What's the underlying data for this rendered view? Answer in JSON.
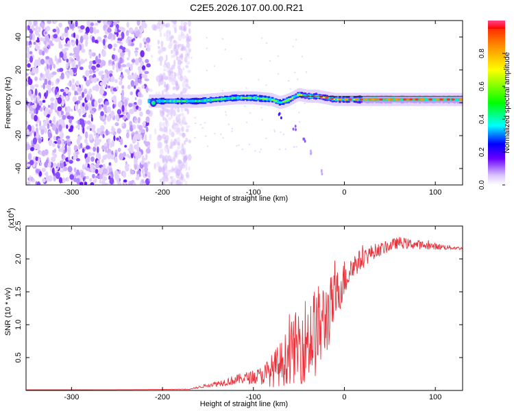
{
  "title": "C2E5.2026.107.00.00.R21",
  "chart_data": [
    {
      "type": "heatmap",
      "xlabel": "Height of straight line (km)",
      "ylabel": "Frequency (Hz)",
      "xlim": [
        -350,
        130
      ],
      "ylim": [
        -50,
        50
      ],
      "xticks": [
        -300,
        -200,
        -100,
        0,
        100
      ],
      "yticks": [
        -40,
        -20,
        0,
        20,
        40
      ],
      "colorbar": {
        "label": "Normalized spectral amplitude",
        "range": [
          0,
          1
        ],
        "ticks": [
          "0.0",
          "0.2",
          "0.4",
          "0.6",
          "0.8"
        ],
        "tick_values": [
          0,
          0.2,
          0.4,
          0.6,
          0.8
        ]
      },
      "features": {
        "noise_region_x": [
          -350,
          -170
        ],
        "ridge_points": [
          [
            -215,
            1
          ],
          [
            -200,
            1
          ],
          [
            -180,
            1
          ],
          [
            -160,
            1
          ],
          [
            -140,
            2
          ],
          [
            -120,
            3
          ],
          [
            -100,
            3
          ],
          [
            -80,
            2
          ],
          [
            -70,
            0
          ],
          [
            -60,
            2
          ],
          [
            -50,
            5
          ],
          [
            -40,
            4
          ],
          [
            -30,
            4
          ],
          [
            -20,
            3
          ],
          [
            -10,
            2
          ],
          [
            0,
            2
          ],
          [
            20,
            2
          ],
          [
            40,
            2
          ],
          [
            60,
            2
          ],
          [
            80,
            2
          ],
          [
            100,
            2
          ],
          [
            130,
            2
          ]
        ],
        "secondary_branch": [
          [
            -70,
            -8
          ],
          [
            -55,
            -15
          ],
          [
            -45,
            -22
          ],
          [
            -35,
            -30
          ],
          [
            -25,
            -42
          ]
        ]
      }
    },
    {
      "type": "line",
      "xlabel": "Height of straight line (km)",
      "ylabel": "SNR (10 * v/v)",
      "scale_label": "(x10",
      "scale_exp": "4",
      "scale_close": ")",
      "xlim": [
        -350,
        130
      ],
      "ylim": [
        0,
        25000
      ],
      "xticks": [
        -300,
        -200,
        -100,
        0,
        100
      ],
      "yticks": [
        5000,
        10000,
        15000,
        20000,
        25000
      ],
      "ytick_labels": [
        "0.5",
        "1.0",
        "1.5",
        "2.0",
        "2.5"
      ],
      "color": "#e8313a",
      "series": [
        {
          "x": [
            -350,
            -300,
            -250,
            -200,
            -170,
            -150,
            -130,
            -110,
            -100,
            -90,
            -80,
            -70,
            -60,
            -50,
            -40,
            -30,
            -20,
            -10,
            0,
            10,
            20,
            30,
            40,
            50,
            60,
            70,
            80,
            90,
            100,
            110,
            120,
            130
          ],
          "values": [
            100,
            100,
            120,
            150,
            200,
            800,
            1300,
            1900,
            2000,
            2300,
            3000,
            4000,
            5500,
            7000,
            8000,
            9000,
            11000,
            14000,
            17000,
            19000,
            20000,
            21000,
            21500,
            22000,
            22500,
            22300,
            22200,
            22000,
            21900,
            21800,
            21700,
            21600
          ],
          "noise_amplitude": [
            0,
            0,
            0,
            0,
            50,
            300,
            600,
            900,
            1000,
            1500,
            2500,
            3500,
            4500,
            6000,
            7000,
            7000,
            6000,
            4000,
            3000,
            2000,
            1500,
            1200,
            1000,
            900,
            900,
            800,
            700,
            600,
            500,
            400,
            300,
            200
          ]
        }
      ]
    }
  ]
}
